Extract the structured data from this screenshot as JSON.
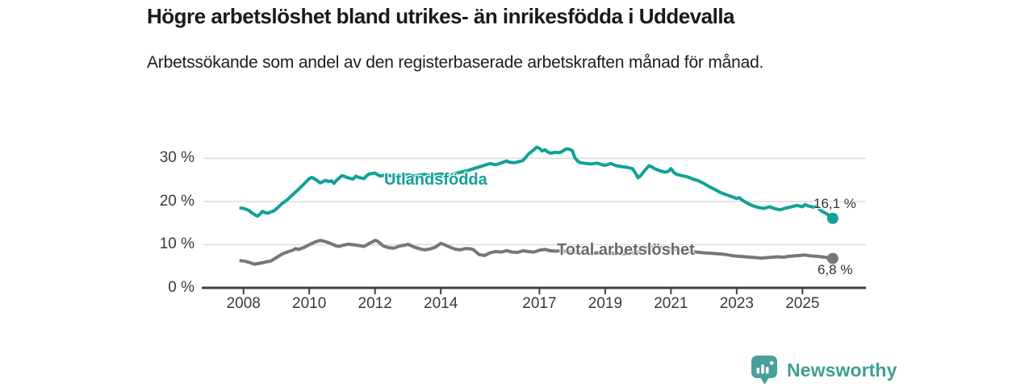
{
  "title": "Högre arbetslöshet bland utrikes- än inrikesfödda i Uddevalla",
  "subtitle": "Arbetssökande som andel av den registerbaserade arbetskraften månad för månad.",
  "branding": {
    "name": "Newsworthy",
    "logo_icon": "bar-chart-badge-icon",
    "brand_color": "#3f9e96",
    "badge_color": "#47a19a"
  },
  "chart_data": {
    "type": "line",
    "title": "Högre arbetslöshet bland utrikes- än inrikesfödda i Uddevalla",
    "xlabel": "",
    "ylabel": "Arbetssökande som andel av den registerbaserade arbetskraften",
    "unit": "%",
    "grid": true,
    "legend_position": "inline-labels",
    "x_axis": {
      "ticks": [
        "2008",
        "2010",
        "2012",
        "2014",
        "2017",
        "2019",
        "2021",
        "2023",
        "2025"
      ],
      "tick_years": [
        2008,
        2010,
        2012,
        2014,
        2017,
        2019,
        2021,
        2023,
        2025
      ],
      "range": [
        2006.78,
        2026.93
      ]
    },
    "y_axis": {
      "ticks": [
        0,
        10,
        20,
        30
      ],
      "tick_suffix": " %",
      "range": [
        0,
        36.8
      ]
    },
    "grid_color": "#dcdcdc",
    "axis_color": "#414141",
    "series": [
      {
        "name": "Utlandsfödda",
        "color": "#11a296",
        "end_label": "16,1 %",
        "end_value": 16.1,
        "points": [
          [
            2007.92,
            18.5
          ],
          [
            2008.0,
            18.4
          ],
          [
            2008.08,
            18.2
          ],
          [
            2008.17,
            17.9
          ],
          [
            2008.25,
            17.4
          ],
          [
            2008.33,
            17.0
          ],
          [
            2008.42,
            16.6
          ],
          [
            2008.5,
            17.1
          ],
          [
            2008.58,
            17.7
          ],
          [
            2008.67,
            17.4
          ],
          [
            2008.75,
            17.3
          ],
          [
            2008.83,
            17.6
          ],
          [
            2008.92,
            17.8
          ],
          [
            2009.0,
            18.3
          ],
          [
            2009.17,
            19.5
          ],
          [
            2009.33,
            20.4
          ],
          [
            2009.5,
            21.6
          ],
          [
            2009.67,
            22.8
          ],
          [
            2009.83,
            24.0
          ],
          [
            2010.0,
            25.3
          ],
          [
            2010.08,
            25.6
          ],
          [
            2010.17,
            25.2
          ],
          [
            2010.25,
            24.8
          ],
          [
            2010.33,
            24.3
          ],
          [
            2010.5,
            24.9
          ],
          [
            2010.58,
            24.6
          ],
          [
            2010.67,
            24.8
          ],
          [
            2010.75,
            24.2
          ],
          [
            2010.83,
            24.9
          ],
          [
            2010.92,
            25.5
          ],
          [
            2011.0,
            26.0
          ],
          [
            2011.08,
            25.8
          ],
          [
            2011.17,
            25.5
          ],
          [
            2011.33,
            25.2
          ],
          [
            2011.42,
            25.9
          ],
          [
            2011.5,
            25.6
          ],
          [
            2011.67,
            25.3
          ],
          [
            2011.75,
            26.0
          ],
          [
            2011.83,
            26.4
          ],
          [
            2012.0,
            26.6
          ],
          [
            2012.08,
            26.2
          ],
          [
            2012.17,
            25.9
          ],
          [
            2012.33,
            26.2
          ],
          [
            2012.5,
            25.9
          ],
          [
            2012.67,
            26.1
          ],
          [
            2012.83,
            26.0
          ],
          [
            2013.0,
            26.2
          ],
          [
            2013.17,
            25.9
          ],
          [
            2013.33,
            26.1
          ],
          [
            2013.5,
            26.3
          ],
          [
            2013.67,
            26.0
          ],
          [
            2013.83,
            26.2
          ],
          [
            2014.0,
            26.4
          ],
          [
            2014.17,
            26.1
          ],
          [
            2014.33,
            26.3
          ],
          [
            2014.5,
            26.6
          ],
          [
            2014.67,
            26.9
          ],
          [
            2014.83,
            27.2
          ],
          [
            2015.0,
            27.6
          ],
          [
            2015.17,
            28.0
          ],
          [
            2015.33,
            28.4
          ],
          [
            2015.5,
            28.8
          ],
          [
            2015.67,
            28.5
          ],
          [
            2015.83,
            28.9
          ],
          [
            2016.0,
            29.4
          ],
          [
            2016.08,
            29.1
          ],
          [
            2016.25,
            29.0
          ],
          [
            2016.42,
            29.3
          ],
          [
            2016.5,
            29.5
          ],
          [
            2016.58,
            30.2
          ],
          [
            2016.67,
            31.0
          ],
          [
            2016.83,
            32.0
          ],
          [
            2016.92,
            32.6
          ],
          [
            2017.0,
            32.3
          ],
          [
            2017.08,
            31.7
          ],
          [
            2017.17,
            32.0
          ],
          [
            2017.25,
            31.5
          ],
          [
            2017.33,
            31.2
          ],
          [
            2017.5,
            31.4
          ],
          [
            2017.58,
            31.3
          ],
          [
            2017.67,
            31.5
          ],
          [
            2017.75,
            31.9
          ],
          [
            2017.83,
            32.2
          ],
          [
            2017.92,
            32.1
          ],
          [
            2018.0,
            31.8
          ],
          [
            2018.08,
            30.1
          ],
          [
            2018.17,
            29.3
          ],
          [
            2018.25,
            29.0
          ],
          [
            2018.42,
            28.8
          ],
          [
            2018.58,
            28.7
          ],
          [
            2018.75,
            28.9
          ],
          [
            2018.92,
            28.5
          ],
          [
            2019.0,
            28.4
          ],
          [
            2019.17,
            28.8
          ],
          [
            2019.33,
            28.3
          ],
          [
            2019.5,
            28.1
          ],
          [
            2019.67,
            27.9
          ],
          [
            2019.83,
            27.6
          ],
          [
            2019.92,
            26.6
          ],
          [
            2020.0,
            25.5
          ],
          [
            2020.08,
            26.0
          ],
          [
            2020.17,
            26.9
          ],
          [
            2020.33,
            28.3
          ],
          [
            2020.42,
            28.0
          ],
          [
            2020.5,
            27.6
          ],
          [
            2020.67,
            27.1
          ],
          [
            2020.83,
            26.8
          ],
          [
            2020.92,
            27.0
          ],
          [
            2021.0,
            27.6
          ],
          [
            2021.08,
            26.8
          ],
          [
            2021.17,
            26.3
          ],
          [
            2021.33,
            26.0
          ],
          [
            2021.5,
            25.7
          ],
          [
            2021.67,
            25.2
          ],
          [
            2021.83,
            24.8
          ],
          [
            2022.0,
            24.2
          ],
          [
            2022.17,
            23.4
          ],
          [
            2022.33,
            22.8
          ],
          [
            2022.5,
            22.1
          ],
          [
            2022.67,
            21.6
          ],
          [
            2022.83,
            21.2
          ],
          [
            2023.0,
            20.7
          ],
          [
            2023.08,
            20.9
          ],
          [
            2023.17,
            20.3
          ],
          [
            2023.33,
            19.6
          ],
          [
            2023.5,
            19.0
          ],
          [
            2023.67,
            18.6
          ],
          [
            2023.83,
            18.4
          ],
          [
            2024.0,
            18.8
          ],
          [
            2024.17,
            18.3
          ],
          [
            2024.33,
            18.1
          ],
          [
            2024.5,
            18.5
          ],
          [
            2024.67,
            18.8
          ],
          [
            2024.83,
            19.1
          ],
          [
            2025.0,
            18.8
          ],
          [
            2025.08,
            19.3
          ],
          [
            2025.17,
            19.0
          ],
          [
            2025.33,
            18.7
          ],
          [
            2025.42,
            18.9
          ],
          [
            2025.5,
            18.3
          ],
          [
            2025.58,
            17.8
          ],
          [
            2025.75,
            17.1
          ],
          [
            2025.92,
            16.1
          ]
        ]
      },
      {
        "name": "Total arbetslöshet",
        "color": "#77767c",
        "end_label": "6,8 %",
        "end_value": 6.8,
        "points": [
          [
            2007.92,
            6.3
          ],
          [
            2008.0,
            6.2
          ],
          [
            2008.08,
            6.1
          ],
          [
            2008.17,
            5.9
          ],
          [
            2008.33,
            5.5
          ],
          [
            2008.5,
            5.7
          ],
          [
            2008.67,
            6.0
          ],
          [
            2008.83,
            6.2
          ],
          [
            2009.0,
            7.0
          ],
          [
            2009.17,
            7.8
          ],
          [
            2009.33,
            8.3
          ],
          [
            2009.5,
            8.7
          ],
          [
            2009.58,
            9.1
          ],
          [
            2009.67,
            8.9
          ],
          [
            2009.83,
            9.3
          ],
          [
            2010.0,
            10.0
          ],
          [
            2010.17,
            10.6
          ],
          [
            2010.33,
            11.0
          ],
          [
            2010.5,
            10.7
          ],
          [
            2010.67,
            10.2
          ],
          [
            2010.83,
            9.7
          ],
          [
            2010.92,
            9.6
          ],
          [
            2011.0,
            9.8
          ],
          [
            2011.17,
            10.1
          ],
          [
            2011.33,
            10.0
          ],
          [
            2011.5,
            9.8
          ],
          [
            2011.67,
            9.6
          ],
          [
            2011.83,
            10.3
          ],
          [
            2012.0,
            11.0
          ],
          [
            2012.08,
            10.8
          ],
          [
            2012.25,
            9.7
          ],
          [
            2012.42,
            9.3
          ],
          [
            2012.58,
            9.2
          ],
          [
            2012.75,
            9.7
          ],
          [
            2012.92,
            9.9
          ],
          [
            2013.0,
            10.1
          ],
          [
            2013.17,
            9.5
          ],
          [
            2013.33,
            9.1
          ],
          [
            2013.5,
            8.8
          ],
          [
            2013.67,
            9.0
          ],
          [
            2013.83,
            9.4
          ],
          [
            2014.0,
            10.3
          ],
          [
            2014.08,
            10.1
          ],
          [
            2014.25,
            9.5
          ],
          [
            2014.42,
            9.0
          ],
          [
            2014.58,
            8.8
          ],
          [
            2014.75,
            9.1
          ],
          [
            2014.92,
            9.0
          ],
          [
            2015.0,
            8.8
          ],
          [
            2015.17,
            7.7
          ],
          [
            2015.33,
            7.5
          ],
          [
            2015.5,
            8.1
          ],
          [
            2015.67,
            8.4
          ],
          [
            2015.83,
            8.3
          ],
          [
            2016.0,
            8.6
          ],
          [
            2016.17,
            8.3
          ],
          [
            2016.33,
            8.2
          ],
          [
            2016.5,
            8.6
          ],
          [
            2016.67,
            8.4
          ],
          [
            2016.83,
            8.3
          ],
          [
            2017.0,
            8.7
          ],
          [
            2017.17,
            8.9
          ],
          [
            2017.33,
            8.6
          ],
          [
            2017.5,
            8.5
          ],
          [
            2017.67,
            8.6
          ],
          [
            2017.83,
            8.4
          ],
          [
            2018.0,
            8.3
          ],
          [
            2018.25,
            8.1
          ],
          [
            2018.5,
            8.0
          ],
          [
            2018.75,
            8.1
          ],
          [
            2019.0,
            8.2
          ],
          [
            2019.25,
            8.0
          ],
          [
            2019.5,
            7.9
          ],
          [
            2019.75,
            8.0
          ],
          [
            2020.0,
            8.2
          ],
          [
            2020.17,
            9.0
          ],
          [
            2020.33,
            9.4
          ],
          [
            2020.5,
            9.5
          ],
          [
            2020.75,
            9.3
          ],
          [
            2021.0,
            9.1
          ],
          [
            2021.25,
            8.8
          ],
          [
            2021.5,
            8.5
          ],
          [
            2021.75,
            8.3
          ],
          [
            2022.0,
            8.1
          ],
          [
            2022.25,
            8.0
          ],
          [
            2022.42,
            7.9
          ],
          [
            2022.58,
            7.8
          ],
          [
            2022.75,
            7.6
          ],
          [
            2022.92,
            7.4
          ],
          [
            2023.08,
            7.3
          ],
          [
            2023.25,
            7.2
          ],
          [
            2023.42,
            7.1
          ],
          [
            2023.58,
            7.0
          ],
          [
            2023.75,
            6.9
          ],
          [
            2023.92,
            7.0
          ],
          [
            2024.08,
            7.1
          ],
          [
            2024.25,
            7.2
          ],
          [
            2024.42,
            7.1
          ],
          [
            2024.58,
            7.3
          ],
          [
            2024.75,
            7.4
          ],
          [
            2024.92,
            7.5
          ],
          [
            2025.08,
            7.6
          ],
          [
            2025.25,
            7.4
          ],
          [
            2025.42,
            7.3
          ],
          [
            2025.58,
            7.2
          ],
          [
            2025.75,
            7.0
          ],
          [
            2025.92,
            6.8
          ]
        ]
      }
    ]
  }
}
